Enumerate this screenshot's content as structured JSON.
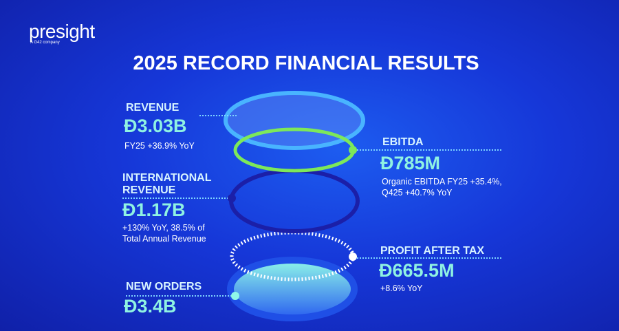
{
  "logo": {
    "name": "presight",
    "tagline": "A G42 company"
  },
  "title": "2025 RECORD FINANCIAL RESULTS",
  "metrics": [
    {
      "label": "REVENUE",
      "value": "Đ3.03B",
      "note": "FY25 +36.9% YoY"
    },
    {
      "label": "INTERNATIONAL REVENUE",
      "value": "Đ1.17B",
      "note": "+130% YoY, 38.5% of Total Annual Revenue"
    },
    {
      "label": "NEW ORDERS",
      "value": "Đ3.4B"
    },
    {
      "label": "EBITDA",
      "value": "Đ785M",
      "note": "Organic EBITDA FY25 +35.4%, Q425 +40.7% YoY"
    },
    {
      "label": "PROFIT AFTER TAX",
      "value": "Đ665.5M",
      "note": "+8.6% YoY"
    }
  ]
}
